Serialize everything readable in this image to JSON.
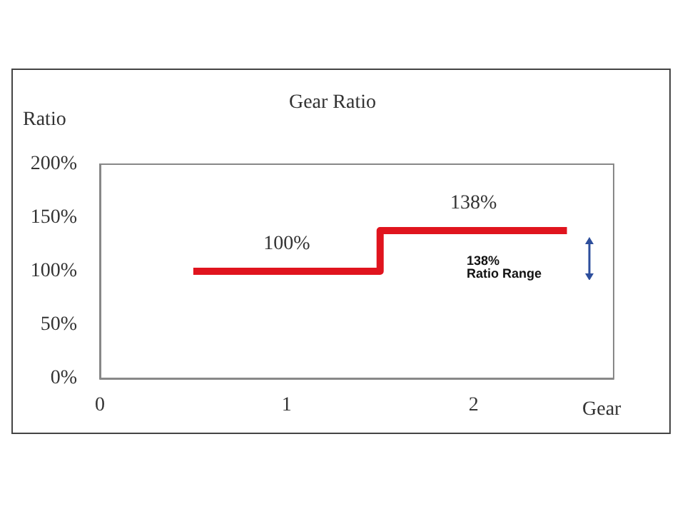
{
  "chart_data": {
    "type": "step",
    "title": "Gear Ratio",
    "xlabel": "Gear",
    "ylabel": "Ratio",
    "x": [
      0.5,
      1,
      1.5,
      2,
      2.5
    ],
    "series": [
      {
        "color": "#e0141e",
        "values": [
          100,
          100,
          138,
          138,
          138
        ],
        "value_labels": [
          null,
          "100%",
          null,
          "138%",
          null
        ]
      }
    ],
    "xlim": [
      0,
      2.75
    ],
    "xticks": [
      0,
      1,
      2
    ],
    "ylim": [
      0,
      200
    ],
    "yticks": [
      {
        "value": 0,
        "label": "0%"
      },
      {
        "value": 50,
        "label": "50%"
      },
      {
        "value": 100,
        "label": "100%"
      },
      {
        "value": 150,
        "label": "150%"
      },
      {
        "value": 200,
        "label": "200%"
      }
    ],
    "annotations": [
      "138%\nRatio Range"
    ],
    "grid": false,
    "marker": "none",
    "line_style": "solid"
  }
}
